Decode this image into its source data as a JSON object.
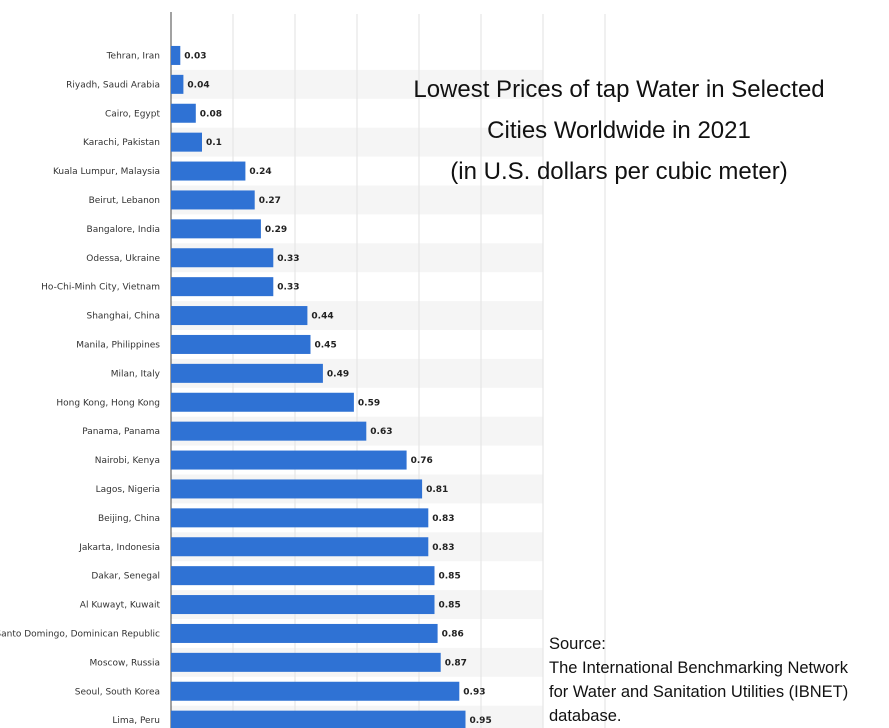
{
  "chart_data": {
    "type": "bar",
    "orientation": "horizontal",
    "title": "Lowest Prices of tap Water in Selected Cities Worldwide in 2021",
    "subtitle": "(in U.S. dollars per cubic meter)",
    "xlim": [
      0,
      1.4
    ],
    "grid": true,
    "categories": [
      "Tehran, Iran",
      "Riyadh, Saudi Arabia",
      "Cairo, Egypt",
      "Karachi, Pakistan",
      "Kuala Lumpur, Malaysia",
      "Beirut, Lebanon",
      "Bangalore, India",
      "Odessa, Ukraine",
      "Ho-Chi-Minh City, Vietnam",
      "Shanghai, China",
      "Manila, Philippines",
      "Milan, Italy",
      "Hong Kong, Hong Kong",
      "Panama, Panama",
      "Nairobi, Kenya",
      "Lagos, Nigeria",
      "Beijing, China",
      "Jakarta, Indonesia",
      "Dakar, Senegal",
      "Al Kuwayt, Kuwait",
      "Santo Domingo, Dominican Republic",
      "Moscow, Russia",
      "Seoul, South Korea",
      "Lima, Peru"
    ],
    "values": [
      0.03,
      0.04,
      0.08,
      0.1,
      0.24,
      0.27,
      0.29,
      0.33,
      0.33,
      0.44,
      0.45,
      0.49,
      0.59,
      0.63,
      0.76,
      0.81,
      0.83,
      0.83,
      0.85,
      0.85,
      0.86,
      0.87,
      0.93,
      0.95
    ],
    "value_labels": [
      "0.03",
      "0.04",
      "0.08",
      "0.1",
      "0.24",
      "0.27",
      "0.29",
      "0.33",
      "0.33",
      "0.44",
      "0.45",
      "0.49",
      "0.59",
      "0.63",
      "0.76",
      "0.81",
      "0.83",
      "0.83",
      "0.85",
      "0.85",
      "0.86",
      "0.87",
      "0.93",
      "0.95"
    ],
    "bar_color": "#2f72d4"
  },
  "title": {
    "line1": "Lowest Prices of tap Water in Selected",
    "line2": "Cities Worldwide in 2021",
    "line3": "(in U.S. dollars per cubic meter)"
  },
  "source": {
    "heading": "Source:",
    "line1": "The International Benchmarking Network",
    "line2": "for Water and Sanitation Utilities (IBNET)",
    "line3": "database."
  }
}
